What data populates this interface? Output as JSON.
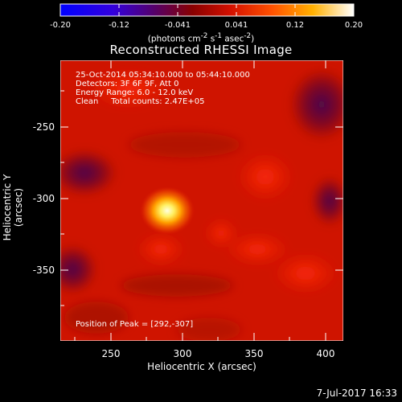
{
  "colorbar": {
    "ticks": [
      "-0.20",
      "-0.12",
      "-0.041",
      "0.041",
      "0.12",
      "0.20"
    ],
    "units_html": "(photons cm<sup>-2</sup> s<sup>-1</sup> asec<sup>-2</sup>)"
  },
  "image": {
    "title": "Reconstructed RHESSI Image",
    "info_lines": [
      "25-Oct-2014 05:34:10.000 to 05:44:10.000",
      "Detectors: 3F 6F 9F, Att 0",
      "Energy Range: 6.0 - 12.0 keV",
      "Clean     Total counts: 2.47E+05"
    ],
    "peak_text": "Position of Peak = [292,-307]",
    "peak_position_arcsec": [
      292,
      -307
    ]
  },
  "axes": {
    "x_label": "Heliocentric X (arcsec)",
    "y_label": "Heliocentric Y (arcsec)",
    "x_ticks": [
      "250",
      "300",
      "350",
      "400"
    ],
    "y_ticks": [
      "-250",
      "-300",
      "-350"
    ]
  },
  "footer": {
    "date": "7-Jul-2017 16:33"
  },
  "colors": {
    "background": "#000000",
    "text": "#ffffff",
    "map_base": "#d01500"
  }
}
